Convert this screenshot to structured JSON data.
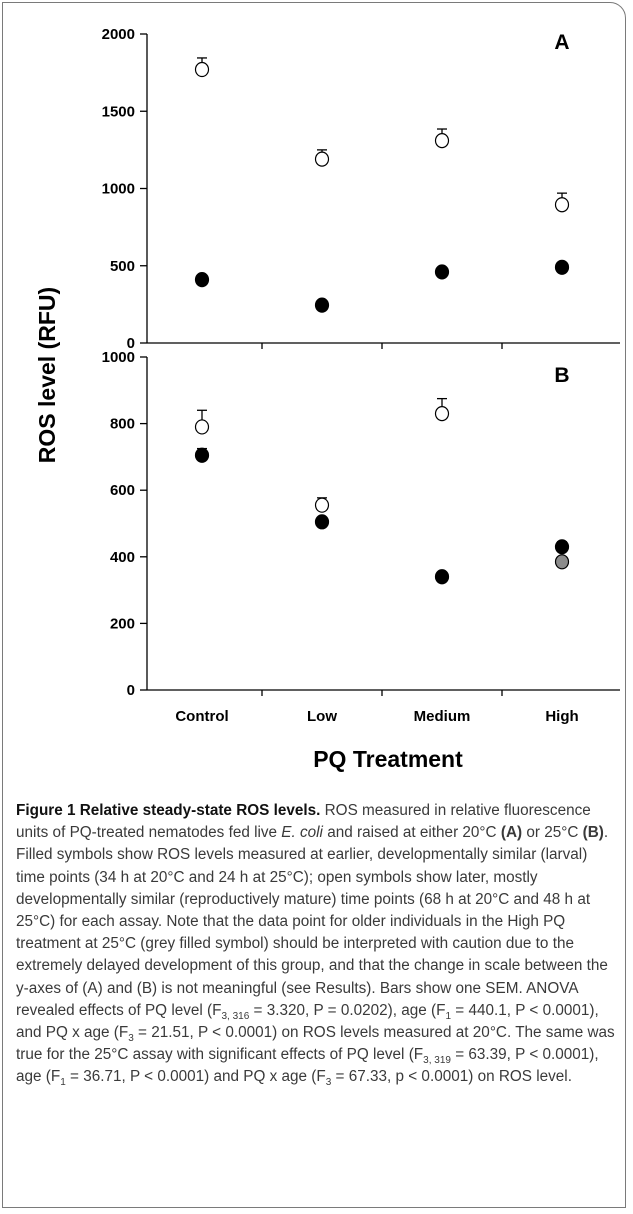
{
  "chart_data": [
    {
      "type": "scatter",
      "panel_label": "A",
      "categories": [
        "Control",
        "Low",
        "Medium",
        "High"
      ],
      "ylim": [
        0,
        2000
      ],
      "yticks": [
        0,
        500,
        1000,
        1500,
        2000
      ],
      "series": [
        {
          "marker": "filled-black",
          "values": [
            410,
            245,
            460,
            490
          ],
          "sem": [
            18,
            15,
            18,
            18
          ]
        },
        {
          "marker": "open",
          "values": [
            1770,
            1190,
            1310,
            895
          ],
          "sem": [
            75,
            60,
            75,
            75
          ]
        }
      ]
    },
    {
      "type": "scatter",
      "panel_label": "B",
      "categories": [
        "Control",
        "Low",
        "Medium",
        "High"
      ],
      "ylim": [
        0,
        1000
      ],
      "yticks": [
        0,
        200,
        400,
        600,
        800,
        1000
      ],
      "series": [
        {
          "marker": "filled-black",
          "values": [
            705,
            505,
            340,
            430
          ],
          "sem": [
            20,
            12,
            8,
            15
          ]
        },
        {
          "marker": "open",
          "values": [
            790,
            555,
            830,
            null
          ],
          "sem": [
            50,
            22,
            45,
            null
          ]
        },
        {
          "marker": "filled-grey",
          "values": [
            null,
            null,
            null,
            385
          ],
          "sem": [
            null,
            null,
            null,
            8
          ]
        }
      ]
    }
  ],
  "axes": {
    "ylabel": "ROS level (RFU)",
    "xlabel": "PQ Treatment"
  },
  "colors": {
    "filled": "#000000",
    "grey_filled": "#8c8c8c",
    "open_fill": "#ffffff",
    "axis": "#000000"
  },
  "caption": {
    "head": "Figure 1 Relative steady-state ROS levels.",
    "parts": [
      " ROS measured in relative fluorescence units of PQ-treated nematodes fed live ",
      "E. coli",
      " and raised at either 20°C ",
      "(A)",
      " or 25°C ",
      "(B)",
      ". Filled symbols show ROS levels measured at earlier, developmentally similar (larval) time points (34 h at 20°C and 24 h at 25°C); open symbols show later, mostly developmentally similar (reproductively mature) time points (68 h at 20°C and 48 h at 25°C) for each assay. Note that the data point for older individuals in the High PQ treatment at 25°C (grey filled symbol) should be interpreted with caution due to the extremely delayed development of this group, and that the change in scale between the y-axes of (A) and (B) is not meaningful (see Results). Bars show one SEM. ANOVA revealed effects of PQ level (F",
      "3, 316",
      " = 3.320, P = 0.0202), age (F",
      "1",
      " = 440.1, P < 0.0001), and PQ x age (F",
      "3",
      " = 21.51, P < 0.0001) on ROS levels measured at 20°C. The same was true for the 25°C assay with significant effects of PQ level (F",
      "3, 319",
      " = 63.39, P < 0.0001), age (F",
      "1",
      " = 36.71, P < 0.0001) and PQ x age (F",
      "3",
      " = 67.33, p < 0.0001) on ROS level."
    ]
  }
}
